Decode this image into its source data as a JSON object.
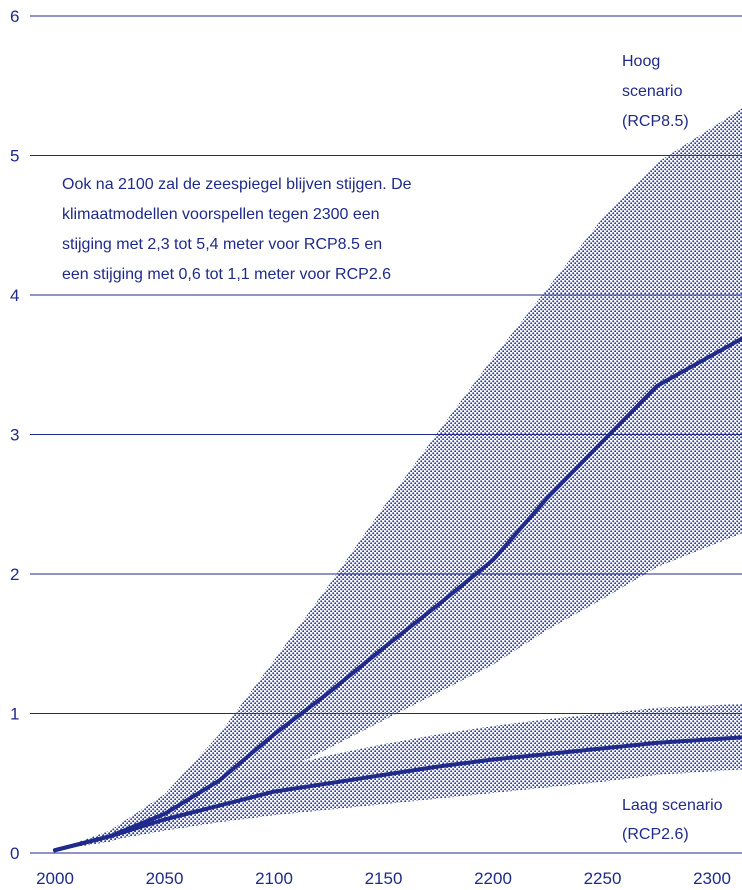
{
  "colors": {
    "accent": "#1f2a8a",
    "band": "#2b3aa6"
  },
  "chart_data": {
    "type": "line",
    "title": "",
    "xlabel": "",
    "ylabel": "",
    "xlim": [
      2000,
      2315
    ],
    "ylim": [
      0,
      6
    ],
    "x_ticks": [
      2000,
      2050,
      2100,
      2150,
      2200,
      2250,
      2300
    ],
    "y_ticks": [
      0,
      1,
      2,
      3,
      4,
      5,
      6
    ],
    "grid": true,
    "annotation": "Ook na 2100 zal de zeespiegel blijven stijgen. De klimaatmodellen voorspellen tegen 2300 een stijging met 2,3 tot 5,4 meter voor RCP8.5 en een stijging met 0,6 tot 1,1 meter voor RCP2.6",
    "annotation_lines": [
      "Ook na 2100 zal de zeespiegel blijven stijgen. De",
      "klimaatmodellen voorspellen tegen 2300 een",
      "stijging met 2,3 tot 5,4 meter voor RCP8.5 en",
      "een stijging met 0,6 tot 1,1 meter voor RCP2.6"
    ],
    "series": [
      {
        "name": "Hoog scenario (RCP8.5)",
        "label_lines": [
          "Hoog",
          "scenario",
          "(RCP8.5)"
        ],
        "x": [
          2000,
          2025,
          2050,
          2075,
          2100,
          2125,
          2150,
          2175,
          2200,
          2225,
          2250,
          2275,
          2315
        ],
        "values": [
          0.02,
          0.12,
          0.28,
          0.52,
          0.85,
          1.15,
          1.47,
          1.78,
          2.1,
          2.55,
          2.95,
          3.35,
          3.7
        ],
        "lower": [
          0.02,
          0.08,
          0.2,
          0.38,
          0.55,
          0.75,
          0.95,
          1.15,
          1.35,
          1.6,
          1.82,
          2.05,
          2.3
        ],
        "upper": [
          0.02,
          0.16,
          0.42,
          0.85,
          1.38,
          1.92,
          2.48,
          3.02,
          3.55,
          4.05,
          4.55,
          4.95,
          5.35
        ]
      },
      {
        "name": "Laag scenario (RCP2.6)",
        "label_lines": [
          "Laag scenario",
          "(RCP2.6)"
        ],
        "x": [
          2000,
          2025,
          2050,
          2075,
          2100,
          2125,
          2150,
          2175,
          2200,
          2225,
          2250,
          2275,
          2315
        ],
        "values": [
          0.02,
          0.12,
          0.24,
          0.34,
          0.44,
          0.5,
          0.56,
          0.62,
          0.67,
          0.71,
          0.75,
          0.79,
          0.83
        ],
        "lower": [
          0.02,
          0.09,
          0.16,
          0.22,
          0.27,
          0.31,
          0.35,
          0.39,
          0.43,
          0.47,
          0.51,
          0.56,
          0.6
        ],
        "upper": [
          0.02,
          0.15,
          0.32,
          0.46,
          0.6,
          0.7,
          0.78,
          0.85,
          0.91,
          0.96,
          1.0,
          1.04,
          1.07
        ]
      }
    ]
  }
}
